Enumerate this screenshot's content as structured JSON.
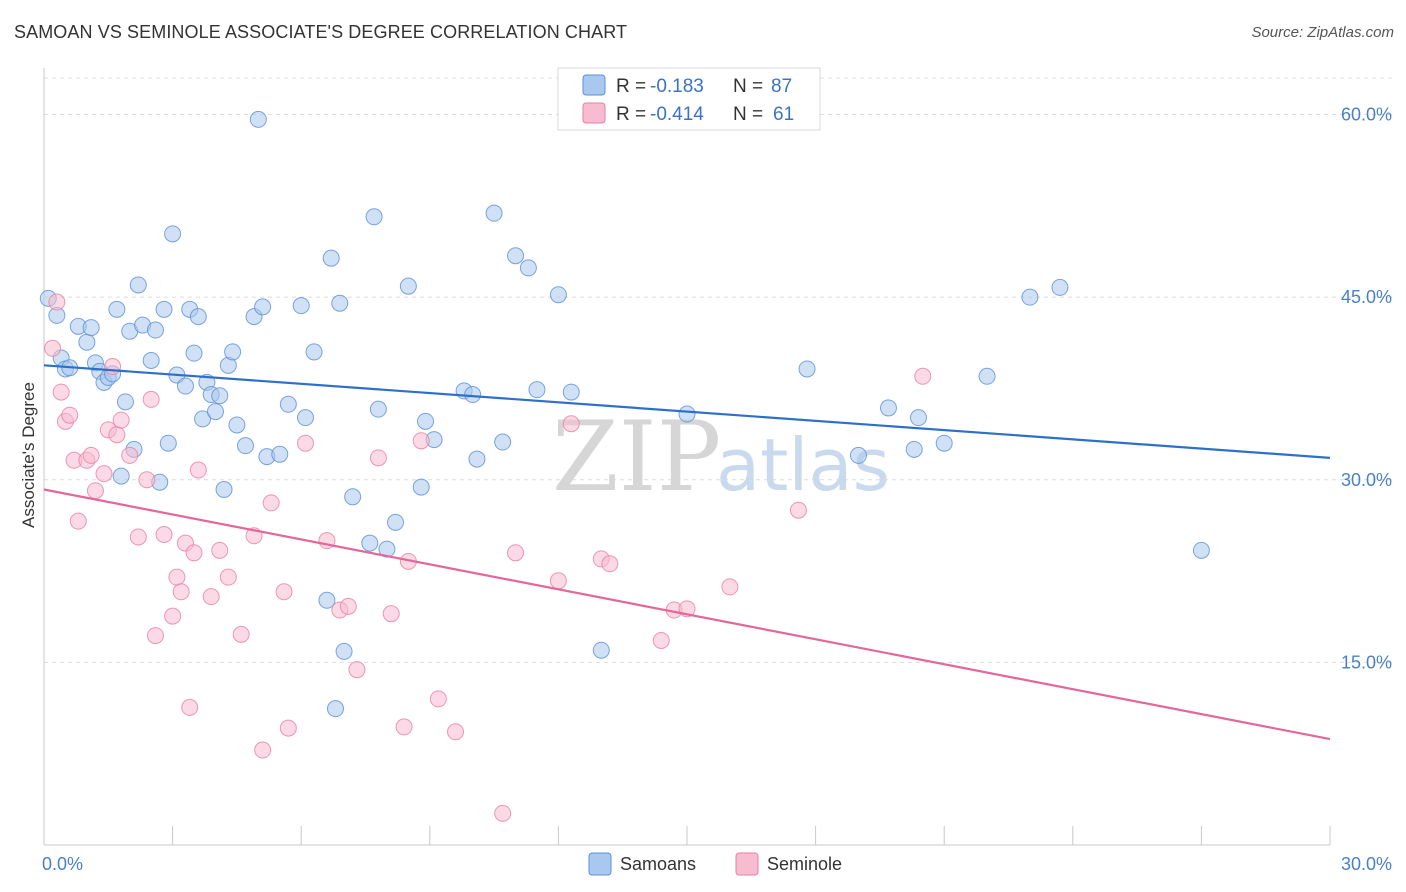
{
  "header": {
    "title": "SAMOAN VS SEMINOLE ASSOCIATE'S DEGREE CORRELATION CHART",
    "source": "Source: ZipAtlas.com"
  },
  "watermark": {
    "zip": "ZIP",
    "atlas": "atlas"
  },
  "legend_top": [
    {
      "r_label": "R =",
      "r_value": "-0.183",
      "n_label": "N =",
      "n_value": "87",
      "color": "#a9c8ef",
      "stroke": "#5b8fd6"
    },
    {
      "r_label": "R =",
      "r_value": "-0.414",
      "n_label": "N =",
      "n_value": "61",
      "color": "#f7bcd0",
      "stroke": "#e8809f"
    }
  ],
  "legend_bottom": [
    {
      "label": "Samoans",
      "color": "#a9c8ef",
      "stroke": "#5b8fd6"
    },
    {
      "label": "Seminole",
      "color": "#f7bcd0",
      "stroke": "#e8809f"
    }
  ],
  "chart_data": {
    "type": "scatter",
    "title": "SAMOAN VS SEMINOLE ASSOCIATE'S DEGREE CORRELATION CHART",
    "xlabel": "",
    "ylabel": "Associate's Degree",
    "xlim": [
      0,
      30
    ],
    "ylim": [
      0,
      63
    ],
    "x_tick_labels": [
      {
        "value": 0,
        "label": "0.0%"
      },
      {
        "value": 30,
        "label": "30.0%"
      }
    ],
    "y_tick_labels": [
      {
        "value": 15,
        "label": "15.0%"
      },
      {
        "value": 30,
        "label": "30.0%"
      },
      {
        "value": 45,
        "label": "45.0%"
      },
      {
        "value": 60,
        "label": "60.0%"
      }
    ],
    "series": [
      {
        "name": "Samoans",
        "color": "#a9c8ef",
        "stroke": "#5b8fd6",
        "trend": {
          "x": [
            0,
            30
          ],
          "y": [
            39.4,
            31.8
          ],
          "color": "#2f6fcc"
        },
        "points": [
          [
            0.1,
            44.9
          ],
          [
            0.3,
            43.5
          ],
          [
            0.4,
            40.0
          ],
          [
            0.5,
            39.1
          ],
          [
            0.6,
            39.2
          ],
          [
            0.8,
            42.6
          ],
          [
            1.0,
            41.3
          ],
          [
            1.1,
            42.5
          ],
          [
            1.2,
            39.6
          ],
          [
            1.3,
            38.9
          ],
          [
            1.4,
            38.0
          ],
          [
            1.5,
            38.4
          ],
          [
            1.6,
            38.7
          ],
          [
            1.7,
            44.0
          ],
          [
            1.8,
            30.3
          ],
          [
            1.9,
            36.4
          ],
          [
            2.0,
            42.2
          ],
          [
            2.1,
            32.5
          ],
          [
            2.2,
            46.0
          ],
          [
            2.3,
            42.7
          ],
          [
            2.5,
            39.8
          ],
          [
            2.6,
            42.3
          ],
          [
            2.7,
            29.8
          ],
          [
            2.8,
            44.0
          ],
          [
            2.9,
            33.0
          ],
          [
            3.0,
            50.2
          ],
          [
            3.1,
            38.6
          ],
          [
            3.3,
            37.7
          ],
          [
            3.4,
            44.0
          ],
          [
            3.5,
            40.4
          ],
          [
            3.6,
            43.4
          ],
          [
            3.7,
            35.0
          ],
          [
            3.8,
            38.0
          ],
          [
            3.9,
            37.0
          ],
          [
            4.0,
            35.6
          ],
          [
            4.1,
            36.9
          ],
          [
            4.2,
            29.2
          ],
          [
            4.3,
            39.4
          ],
          [
            4.4,
            40.5
          ],
          [
            4.5,
            34.5
          ],
          [
            4.7,
            32.8
          ],
          [
            4.9,
            43.4
          ],
          [
            5.0,
            59.6
          ],
          [
            5.1,
            44.2
          ],
          [
            5.2,
            31.9
          ],
          [
            5.5,
            32.1
          ],
          [
            5.7,
            36.2
          ],
          [
            6.0,
            44.3
          ],
          [
            6.1,
            35.1
          ],
          [
            6.3,
            40.5
          ],
          [
            6.6,
            20.1
          ],
          [
            6.7,
            48.2
          ],
          [
            6.8,
            11.2
          ],
          [
            6.9,
            44.5
          ],
          [
            7.0,
            15.9
          ],
          [
            7.2,
            28.6
          ],
          [
            7.6,
            24.8
          ],
          [
            7.7,
            51.6
          ],
          [
            7.8,
            35.8
          ],
          [
            8.0,
            24.3
          ],
          [
            8.2,
            26.5
          ],
          [
            8.5,
            45.9
          ],
          [
            8.8,
            29.4
          ],
          [
            8.9,
            34.8
          ],
          [
            9.1,
            33.3
          ],
          [
            9.8,
            37.3
          ],
          [
            10.0,
            37.0
          ],
          [
            10.1,
            31.7
          ],
          [
            10.5,
            51.9
          ],
          [
            10.7,
            33.1
          ],
          [
            11.0,
            48.4
          ],
          [
            11.3,
            47.4
          ],
          [
            11.5,
            37.4
          ],
          [
            12.0,
            45.2
          ],
          [
            12.3,
            37.2
          ],
          [
            13.0,
            16.0
          ],
          [
            15.0,
            35.4
          ],
          [
            17.8,
            39.1
          ],
          [
            19.0,
            32.0
          ],
          [
            19.7,
            35.9
          ],
          [
            20.3,
            32.5
          ],
          [
            20.4,
            35.1
          ],
          [
            21.0,
            33.0
          ],
          [
            22.0,
            38.5
          ],
          [
            23.0,
            45.0
          ],
          [
            23.7,
            45.8
          ],
          [
            27.0,
            24.2
          ]
        ]
      },
      {
        "name": "Seminole",
        "color": "#f7bcd0",
        "stroke": "#e8809f",
        "trend": {
          "x": [
            0,
            30
          ],
          "y": [
            29.2,
            8.7
          ],
          "color": "#e3679a"
        },
        "points": [
          [
            0.2,
            40.8
          ],
          [
            0.3,
            44.6
          ],
          [
            0.4,
            37.2
          ],
          [
            0.5,
            34.8
          ],
          [
            0.6,
            35.3
          ],
          [
            0.7,
            31.6
          ],
          [
            0.8,
            26.6
          ],
          [
            1.0,
            31.6
          ],
          [
            1.1,
            32.0
          ],
          [
            1.2,
            29.1
          ],
          [
            1.4,
            30.5
          ],
          [
            1.5,
            34.1
          ],
          [
            1.6,
            39.3
          ],
          [
            1.7,
            33.7
          ],
          [
            1.8,
            34.9
          ],
          [
            2.0,
            32.0
          ],
          [
            2.2,
            25.3
          ],
          [
            2.4,
            30.0
          ],
          [
            2.5,
            36.6
          ],
          [
            2.6,
            17.2
          ],
          [
            2.8,
            25.5
          ],
          [
            3.0,
            18.8
          ],
          [
            3.1,
            22.0
          ],
          [
            3.2,
            20.8
          ],
          [
            3.3,
            24.8
          ],
          [
            3.4,
            11.3
          ],
          [
            3.5,
            24.0
          ],
          [
            3.6,
            30.8
          ],
          [
            3.9,
            20.4
          ],
          [
            4.1,
            24.2
          ],
          [
            4.3,
            22.0
          ],
          [
            4.6,
            17.3
          ],
          [
            4.9,
            25.4
          ],
          [
            5.1,
            7.8
          ],
          [
            5.3,
            28.1
          ],
          [
            5.6,
            20.8
          ],
          [
            5.7,
            9.6
          ],
          [
            6.1,
            33.0
          ],
          [
            6.6,
            25.0
          ],
          [
            6.9,
            19.3
          ],
          [
            7.1,
            19.6
          ],
          [
            7.3,
            14.4
          ],
          [
            7.8,
            31.8
          ],
          [
            8.1,
            19.0
          ],
          [
            8.4,
            9.7
          ],
          [
            8.5,
            23.3
          ],
          [
            8.8,
            33.2
          ],
          [
            9.2,
            12.0
          ],
          [
            9.6,
            9.3
          ],
          [
            10.7,
            2.6
          ],
          [
            11.0,
            24.0
          ],
          [
            12.0,
            21.7
          ],
          [
            12.3,
            34.6
          ],
          [
            13.0,
            23.5
          ],
          [
            13.2,
            23.1
          ],
          [
            14.4,
            16.8
          ],
          [
            14.7,
            19.3
          ],
          [
            15.0,
            19.4
          ],
          [
            16.0,
            21.2
          ],
          [
            17.6,
            27.5
          ],
          [
            20.5,
            38.5
          ]
        ]
      }
    ]
  }
}
